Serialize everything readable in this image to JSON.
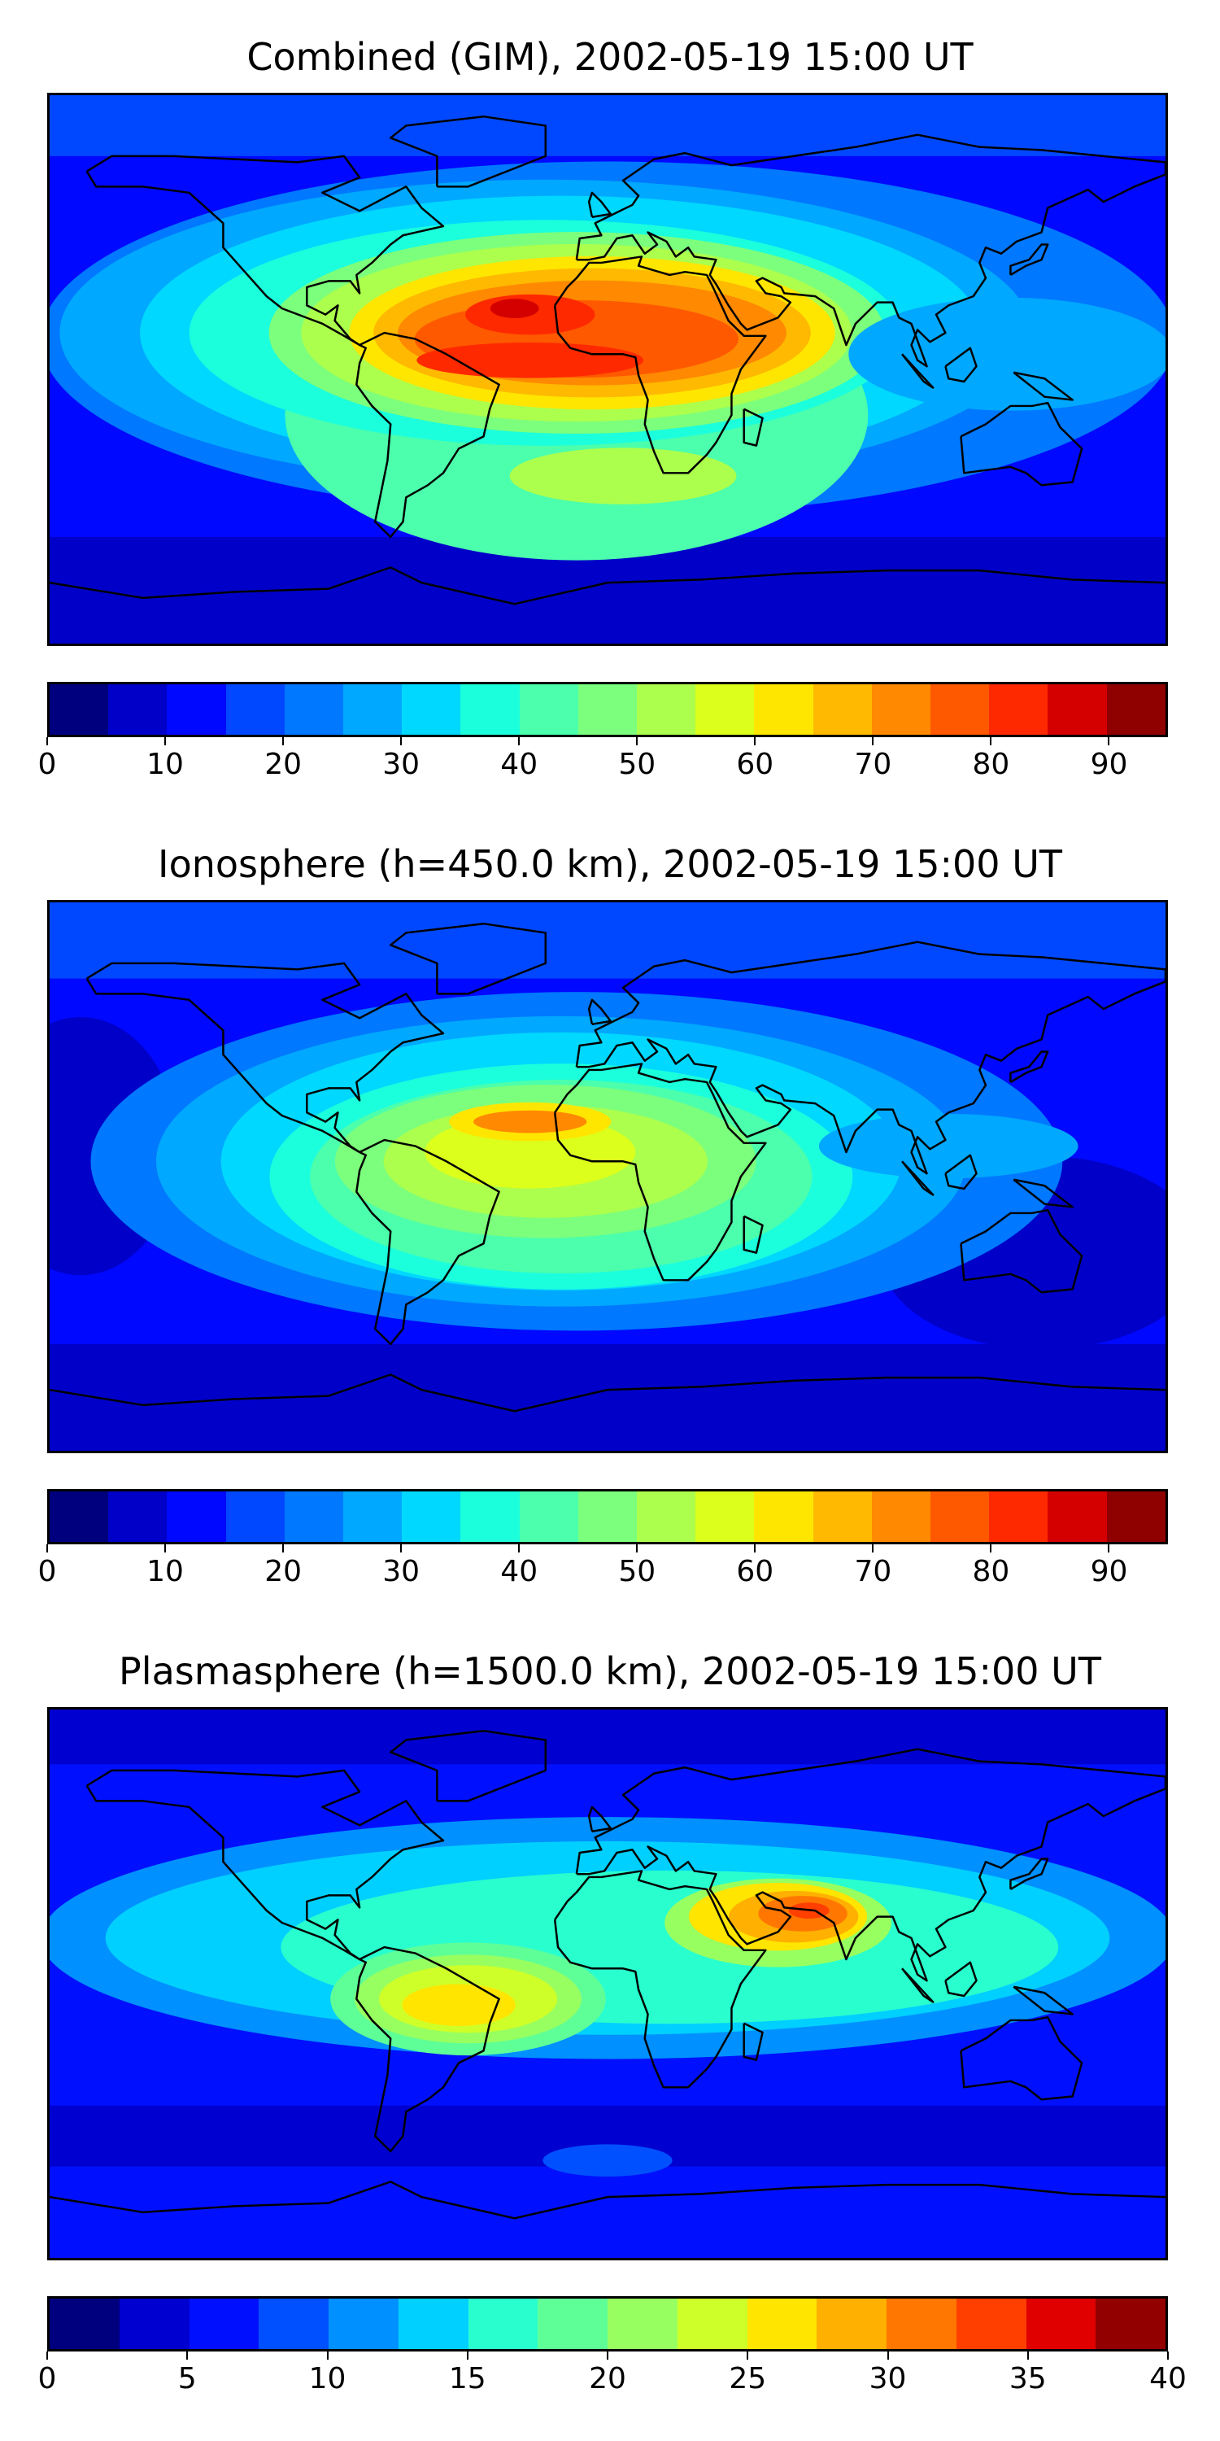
{
  "panels": [
    {
      "title": "Combined (GIM), 2002-05-19 15:00 UT",
      "colorbar": {
        "min": 0,
        "max": 95,
        "step": 5,
        "ticks": [
          "0",
          "10",
          "20",
          "30",
          "40",
          "50",
          "60",
          "70",
          "80",
          "90"
        ],
        "tick_values": [
          0,
          10,
          20,
          30,
          40,
          50,
          60,
          70,
          80,
          90
        ]
      },
      "field": "combined"
    },
    {
      "title": "Ionosphere  (h=450.0 km), 2002-05-19 15:00 UT",
      "colorbar": {
        "min": 0,
        "max": 95,
        "step": 5,
        "ticks": [
          "0",
          "10",
          "20",
          "30",
          "40",
          "50",
          "60",
          "70",
          "80",
          "90"
        ],
        "tick_values": [
          0,
          10,
          20,
          30,
          40,
          50,
          60,
          70,
          80,
          90
        ]
      },
      "field": "ionosphere"
    },
    {
      "title": "Plasmasphere (h=1500.0 km), 2002-05-19 15:00 UT",
      "colorbar": {
        "min": 0,
        "max": 40,
        "step": 2.5,
        "ticks": [
          "0",
          "5",
          "10",
          "15",
          "20",
          "25",
          "30",
          "35",
          "40"
        ],
        "tick_values": [
          0,
          5,
          10,
          15,
          20,
          25,
          30,
          35,
          40
        ]
      },
      "field": "plasmasphere"
    }
  ],
  "colormap_19": [
    "#00007f",
    "#0000c8",
    "#0008ff",
    "#0048ff",
    "#0078ff",
    "#00a8ff",
    "#00d8ff",
    "#1cffdc",
    "#4cffac",
    "#7cff7c",
    "#acff4c",
    "#dcff1c",
    "#ffe600",
    "#ffb900",
    "#ff8900",
    "#ff5900",
    "#ff2900",
    "#d40000",
    "#8f0000"
  ],
  "colormap_16": [
    "#00007f",
    "#0000d0",
    "#0010ff",
    "#0050ff",
    "#0090ff",
    "#00d0ff",
    "#29ffce",
    "#5fff97",
    "#97ff60",
    "#ceff29",
    "#ffe500",
    "#ffb000",
    "#ff7700",
    "#ff3f00",
    "#e00000",
    "#930000"
  ]
}
